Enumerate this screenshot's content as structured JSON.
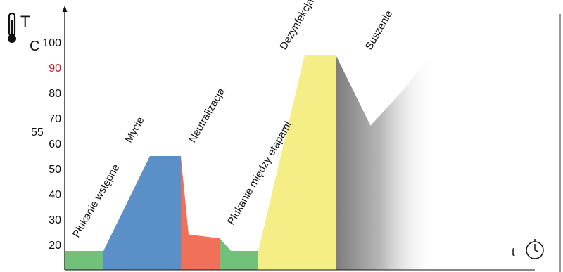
{
  "chart_data": {
    "type": "area",
    "y_axis": {
      "symbol": "T",
      "unit": "C",
      "ticks": [
        20,
        30,
        40,
        50,
        60,
        70,
        80,
        90,
        100
      ],
      "highlight_tick": 90,
      "highlight_tick_color": "#d0202a",
      "extra_label": "55",
      "extra_label_value": 55,
      "ylim": [
        0,
        105
      ]
    },
    "x_axis": {
      "symbol": "t",
      "icon": "clock-icon"
    },
    "stages": [
      {
        "name": "Płukanie wstępne",
        "color": "#72c17a",
        "points": [
          [
            0,
            17.5
          ],
          [
            10,
            17.5
          ]
        ]
      },
      {
        "name": "Mycie",
        "color": "#5a8fc8",
        "points": [
          [
            10,
            17.5
          ],
          [
            22,
            55
          ],
          [
            30,
            55
          ]
        ]
      },
      {
        "name": "Neutralizacja",
        "color": "#f0705a",
        "points": [
          [
            30,
            55
          ],
          [
            32,
            24
          ],
          [
            40,
            22.5
          ]
        ]
      },
      {
        "name": "Płukanie między etapami",
        "color": "#72c17a",
        "points": [
          [
            40,
            22.5
          ],
          [
            43,
            17.5
          ],
          [
            50,
            17.5
          ]
        ]
      },
      {
        "name": "Dezynfekcja",
        "color": "#f5ee86",
        "points": [
          [
            50,
            17.5
          ],
          [
            62,
            95
          ],
          [
            70,
            95
          ]
        ]
      },
      {
        "name": "Suszenie",
        "color": "#9a9a9a",
        "points": [
          [
            70,
            95
          ],
          [
            79,
            67
          ],
          [
            88,
            82
          ],
          [
            96,
            98
          ]
        ]
      }
    ],
    "xlim": [
      0,
      96
    ]
  }
}
